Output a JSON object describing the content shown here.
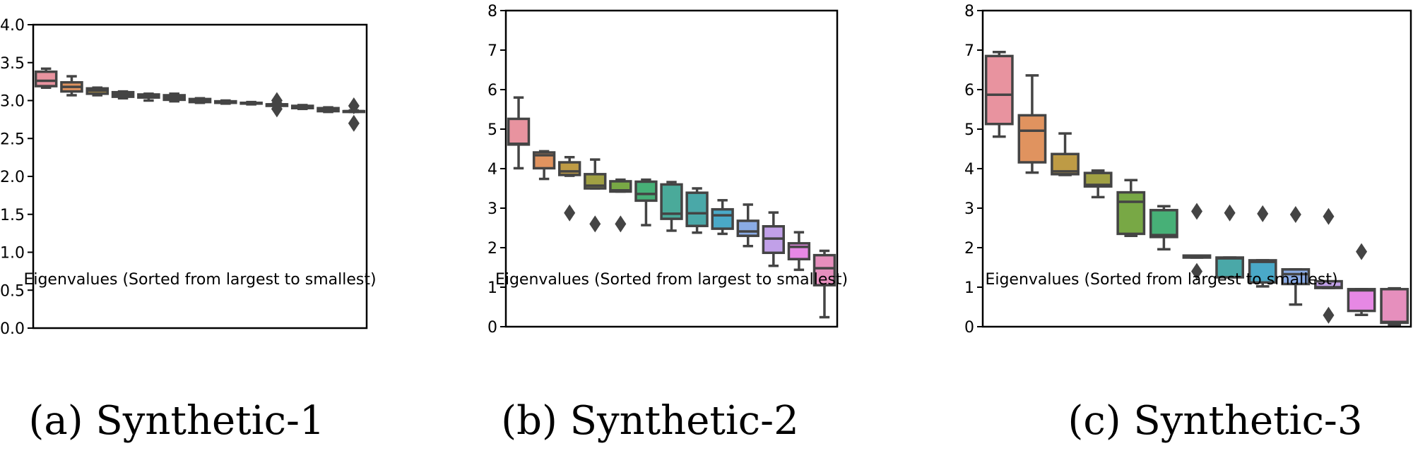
{
  "chart_data": [
    {
      "type": "box",
      "caption": "(a) Synthetic-1",
      "xlabel": "Eigenvalues (Sorted from largest to smallest)",
      "ylabel": "",
      "ylim": [
        0,
        4.0
      ],
      "yticks": [
        0.0,
        0.5,
        1.0,
        1.5,
        2.0,
        2.5,
        3.0,
        3.5,
        4.0
      ],
      "ytick_labels": [
        "0.0",
        "0.5",
        "1.0",
        "1.5",
        "2.0",
        "2.5",
        "3.0",
        "3.5",
        "4.0"
      ],
      "grid": false,
      "boxes": [
        {
          "whislo": 3.17,
          "q1": 3.19,
          "med": 3.26,
          "q3": 3.38,
          "whishi": 3.42,
          "fliers": [],
          "color": "#e8939f"
        },
        {
          "whislo": 3.07,
          "q1": 3.12,
          "med": 3.18,
          "q3": 3.24,
          "whishi": 3.32,
          "fliers": [],
          "color": "#e0935f"
        },
        {
          "whislo": 3.07,
          "q1": 3.09,
          "med": 3.13,
          "q3": 3.16,
          "whishi": 3.17,
          "fliers": [],
          "color": "#be9b45"
        },
        {
          "whislo": 3.03,
          "q1": 3.05,
          "med": 3.08,
          "q3": 3.11,
          "whishi": 3.12,
          "fliers": [],
          "color": "#a0a043"
        },
        {
          "whislo": 3.0,
          "q1": 3.04,
          "med": 3.06,
          "q3": 3.08,
          "whishi": 3.09,
          "fliers": [],
          "color": "#78a845"
        },
        {
          "whislo": 2.99,
          "q1": 3.01,
          "med": 3.04,
          "q3": 3.07,
          "whishi": 3.09,
          "fliers": [],
          "color": "#47b077"
        },
        {
          "whislo": 2.97,
          "q1": 2.98,
          "med": 3.0,
          "q3": 3.02,
          "whishi": 3.03,
          "fliers": [],
          "color": "#4aaa9a"
        },
        {
          "whislo": 2.96,
          "q1": 2.97,
          "med": 2.98,
          "q3": 2.99,
          "whishi": 3.0,
          "fliers": [],
          "color": "#4aa8a8"
        },
        {
          "whislo": 2.95,
          "q1": 2.96,
          "med": 2.97,
          "q3": 2.97,
          "whishi": 2.98,
          "fliers": [],
          "color": "#4aa9c8"
        },
        {
          "whislo": 2.93,
          "q1": 2.93,
          "med": 2.95,
          "q3": 2.95,
          "whishi": 2.96,
          "fliers": [
            3.0,
            2.89
          ],
          "color": "#8aabe5"
        },
        {
          "whislo": 2.89,
          "q1": 2.9,
          "med": 2.92,
          "q3": 2.93,
          "whishi": 2.94,
          "fliers": [],
          "color": "#c1a0e8"
        },
        {
          "whislo": 2.85,
          "q1": 2.86,
          "med": 2.88,
          "q3": 2.9,
          "whishi": 2.91,
          "fliers": [],
          "color": "#e688e4"
        },
        {
          "whislo": 2.85,
          "q1": 2.85,
          "med": 2.86,
          "q3": 2.86,
          "whishi": 2.87,
          "fliers": [
            2.93,
            2.7
          ],
          "color": "#e68fbd"
        }
      ]
    },
    {
      "type": "box",
      "caption": "(b) Synthetic-2",
      "xlabel": "Eigenvalues (Sorted from largest to smallest)",
      "ylabel": "",
      "ylim": [
        0,
        8
      ],
      "yticks": [
        0,
        1,
        2,
        3,
        4,
        5,
        6,
        7,
        8
      ],
      "ytick_labels": [
        "0",
        "1",
        "2",
        "3",
        "4",
        "5",
        "6",
        "7",
        "8"
      ],
      "grid": false,
      "boxes": [
        {
          "whislo": 4.01,
          "q1": 4.61,
          "med": 4.63,
          "q3": 5.26,
          "whishi": 5.8,
          "fliers": [],
          "color": "#e8939f"
        },
        {
          "whislo": 3.74,
          "q1": 4.01,
          "med": 4.34,
          "q3": 4.41,
          "whishi": 4.44,
          "fliers": [],
          "color": "#e0935f"
        },
        {
          "whislo": 3.82,
          "q1": 3.84,
          "med": 3.93,
          "q3": 4.16,
          "whishi": 4.29,
          "fliers": [
            2.88
          ],
          "color": "#be9b45"
        },
        {
          "whislo": 3.5,
          "q1": 3.5,
          "med": 3.57,
          "q3": 3.86,
          "whishi": 4.23,
          "fliers": [
            2.6
          ],
          "color": "#a0a043"
        },
        {
          "whislo": 3.42,
          "q1": 3.42,
          "med": 3.45,
          "q3": 3.68,
          "whishi": 3.72,
          "fliers": [
            2.6
          ],
          "color": "#78a845"
        },
        {
          "whislo": 2.57,
          "q1": 3.19,
          "med": 3.36,
          "q3": 3.67,
          "whishi": 3.72,
          "fliers": [],
          "color": "#47b077"
        },
        {
          "whislo": 2.43,
          "q1": 2.73,
          "med": 2.86,
          "q3": 3.6,
          "whishi": 3.66,
          "fliers": [],
          "color": "#4aaa9a"
        },
        {
          "whislo": 2.38,
          "q1": 2.55,
          "med": 2.87,
          "q3": 3.39,
          "whishi": 3.5,
          "fliers": [],
          "color": "#4aa8a8"
        },
        {
          "whislo": 2.35,
          "q1": 2.48,
          "med": 2.82,
          "q3": 2.97,
          "whishi": 3.2,
          "fliers": [],
          "color": "#4aa9c8"
        },
        {
          "whislo": 2.04,
          "q1": 2.3,
          "med": 2.41,
          "q3": 2.68,
          "whishi": 3.09,
          "fliers": [],
          "color": "#8aabe5"
        },
        {
          "whislo": 1.54,
          "q1": 1.87,
          "med": 2.23,
          "q3": 2.54,
          "whishi": 2.89,
          "fliers": [],
          "color": "#c1a0e8"
        },
        {
          "whislo": 1.44,
          "q1": 1.71,
          "med": 2.02,
          "q3": 2.11,
          "whishi": 2.39,
          "fliers": [],
          "color": "#e688e4"
        },
        {
          "whislo": 0.24,
          "q1": 1.05,
          "med": 1.48,
          "q3": 1.81,
          "whishi": 1.92,
          "fliers": [],
          "color": "#e68fbd"
        }
      ]
    },
    {
      "type": "box",
      "caption": "(c) Synthetic-3",
      "xlabel": "Eigenvalues (Sorted from largest to smallest)",
      "ylabel": "",
      "ylim": [
        0,
        8
      ],
      "yticks": [
        0,
        1,
        2,
        3,
        4,
        5,
        6,
        7,
        8
      ],
      "ytick_labels": [
        "0",
        "1",
        "2",
        "3",
        "4",
        "5",
        "6",
        "7",
        "8"
      ],
      "grid": false,
      "boxes": [
        {
          "whislo": 4.81,
          "q1": 5.13,
          "med": 5.87,
          "q3": 6.85,
          "whishi": 6.95,
          "fliers": [],
          "color": "#e8939f"
        },
        {
          "whislo": 3.9,
          "q1": 4.16,
          "med": 4.96,
          "q3": 5.35,
          "whishi": 6.36,
          "fliers": [],
          "color": "#e0935f"
        },
        {
          "whislo": 3.84,
          "q1": 3.86,
          "med": 3.93,
          "q3": 4.37,
          "whishi": 4.89,
          "fliers": [],
          "color": "#be9b45"
        },
        {
          "whislo": 3.28,
          "q1": 3.55,
          "med": 3.59,
          "q3": 3.89,
          "whishi": 3.95,
          "fliers": [],
          "color": "#a0a043"
        },
        {
          "whislo": 2.3,
          "q1": 2.35,
          "med": 3.16,
          "q3": 3.4,
          "whishi": 3.71,
          "fliers": [],
          "color": "#78a845"
        },
        {
          "whislo": 1.96,
          "q1": 2.27,
          "med": 2.32,
          "q3": 2.95,
          "whishi": 3.05,
          "fliers": [],
          "color": "#47b077"
        },
        {
          "whislo": 1.75,
          "q1": 1.75,
          "med": 1.78,
          "q3": 1.8,
          "whishi": 1.8,
          "fliers": [
            2.92,
            1.4
          ],
          "color": "#4aaa9a"
        },
        {
          "whislo": 1.25,
          "q1": 1.25,
          "med": 1.73,
          "q3": 1.75,
          "whishi": 1.75,
          "fliers": [
            2.88
          ],
          "color": "#4aa8a8"
        },
        {
          "whislo": 1.02,
          "q1": 1.12,
          "med": 1.64,
          "q3": 1.68,
          "whishi": 1.68,
          "fliers": [
            2.86
          ],
          "color": "#4aa9c8"
        },
        {
          "whislo": 0.56,
          "q1": 1.08,
          "med": 1.33,
          "q3": 1.45,
          "whishi": 1.45,
          "fliers": [
            2.84
          ],
          "color": "#8aabe5"
        },
        {
          "whislo": 0.98,
          "q1": 0.98,
          "med": 1.0,
          "q3": 1.15,
          "whishi": 1.15,
          "fliers": [
            2.79,
            0.29
          ],
          "color": "#c1a0e8"
        },
        {
          "whislo": 0.3,
          "q1": 0.4,
          "med": 0.92,
          "q3": 0.95,
          "whishi": 0.95,
          "fliers": [
            1.9
          ],
          "color": "#e688e4"
        },
        {
          "whislo": 0.05,
          "q1": 0.1,
          "med": 0.12,
          "q3": 0.95,
          "whishi": 0.97,
          "fliers": [],
          "color": "#e68fbd"
        }
      ]
    }
  ],
  "style": {
    "line_color": "#444444",
    "axis_color": "#000000"
  }
}
